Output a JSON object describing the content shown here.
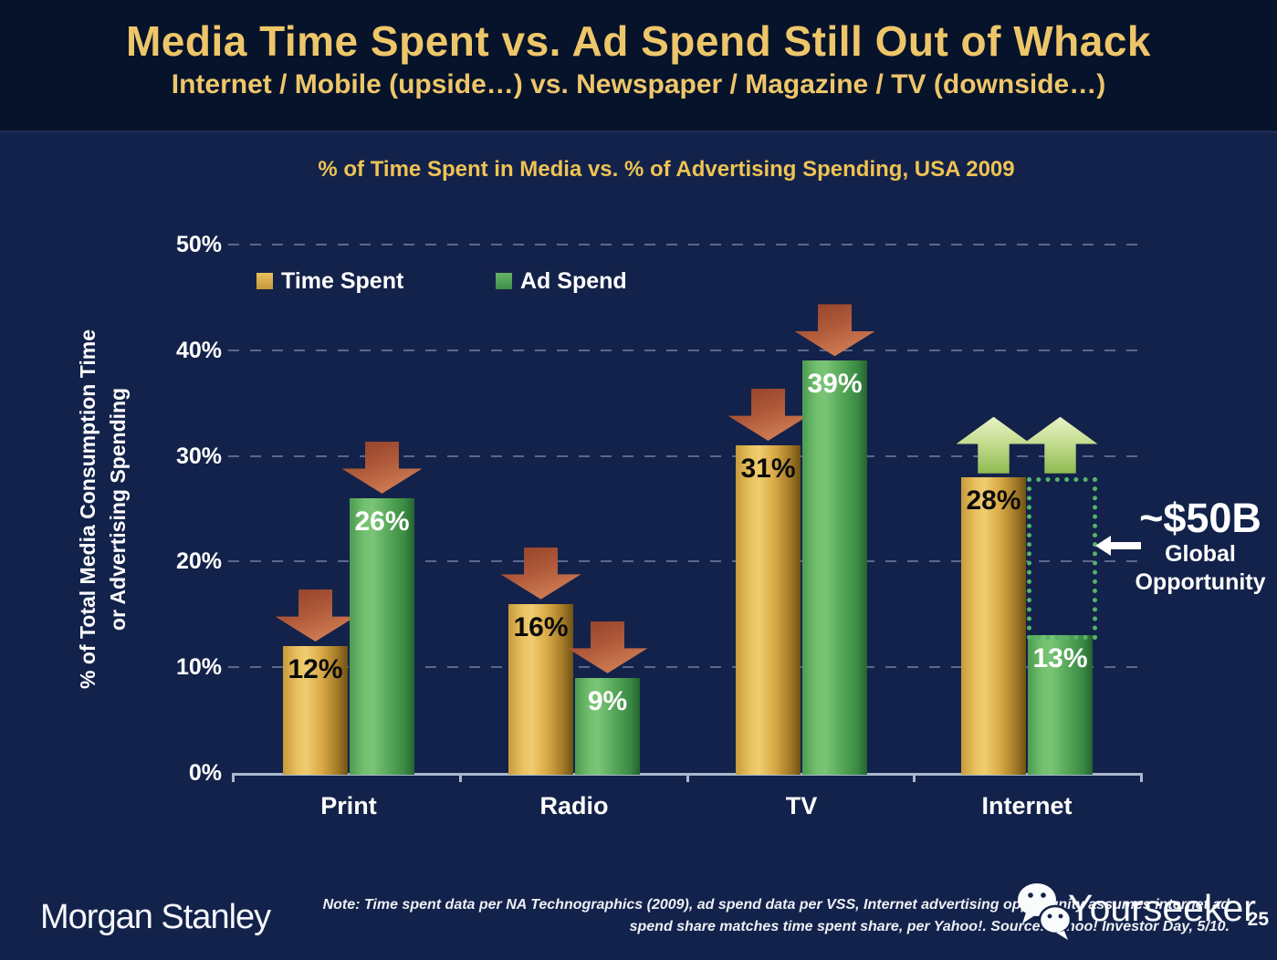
{
  "header": {
    "title": "Media Time Spent vs. Ad Spend Still Out of Whack",
    "subtitle": "Internet / Mobile (upside…) vs. Newspaper / Magazine / TV (downside…)"
  },
  "chart_data": {
    "type": "bar",
    "title": "% of Time Spent in Media vs. % of Advertising Spending, USA 2009",
    "categories": [
      "Print",
      "Radio",
      "TV",
      "Internet"
    ],
    "series": [
      {
        "name": "Time Spent",
        "values": [
          12,
          16,
          31,
          28
        ],
        "labels": [
          "12%",
          "16%",
          "31%",
          "28%"
        ],
        "color": "#D9A945",
        "label_color": "#0B0B0B"
      },
      {
        "name": "Ad Spend",
        "values": [
          26,
          9,
          39,
          13
        ],
        "labels": [
          "26%",
          "9%",
          "39%",
          "13%"
        ],
        "color": "#55A658",
        "label_color": "#FFFFFF"
      }
    ],
    "ylabel_lines": [
      "% of Total Media Consumption Time",
      "or Advertising Spending"
    ],
    "ylim": [
      0,
      50
    ],
    "ytick_values": [
      0,
      10,
      20,
      30,
      40,
      50
    ],
    "ytick_labels": [
      "0%",
      "10%",
      "20%",
      "30%",
      "40%",
      "50%"
    ],
    "grid": "dashed horizontal gridlines",
    "legend_position": "top-left inside plot",
    "trend_arrows": [
      {
        "category": "Print",
        "time_spent": "down",
        "ad_spend": "down"
      },
      {
        "category": "Radio",
        "time_spent": "down",
        "ad_spend": "down"
      },
      {
        "category": "TV",
        "time_spent": "down",
        "ad_spend": "down"
      },
      {
        "category": "Internet",
        "time_spent": "up",
        "ad_spend": "up"
      }
    ],
    "gap_highlight": {
      "category": "Internet",
      "series": "Ad Spend",
      "from_pct": 13,
      "to_pct": 28,
      "style": "green dotted rectangle marking upside gap"
    },
    "annotation": {
      "value": "~$50B",
      "caption_lines": [
        "Global",
        "Opportunity"
      ],
      "arrow_direction": "left"
    }
  },
  "footer": {
    "brand": "Morgan Stanley",
    "note_line1": "Note: Time spent data per NA Technographics (2009), ad spend data per VSS, Internet advertising opportunity assumes internet ad",
    "note_line2": "spend share matches time spent share, per Yahoo!. Source: Yahoo! Investor Day, 5/10.",
    "watermark": "Yourseeker",
    "page_number": "25"
  },
  "colors": {
    "slide_background": "#13224A",
    "header_background": "#07132A",
    "title_gold": "#EEC66A",
    "chart_title_gold": "#EFC353",
    "bar_gold": "#D9A945",
    "bar_green": "#55A658",
    "down_arrow_red": "#C2603C",
    "up_arrow_green": "#BBD687",
    "gap_dotted_green": "#55B46A",
    "axis_line": "#A9B8CD",
    "text_white": "#FFFFFF"
  }
}
